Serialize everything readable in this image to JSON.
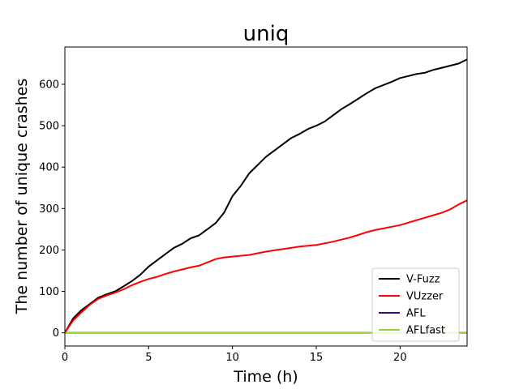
{
  "chart_data": {
    "type": "line",
    "title": "uniq",
    "xlabel": "Time (h)",
    "ylabel": "The number of unique crashes",
    "xlim": [
      0,
      24
    ],
    "ylim": [
      -32,
      690
    ],
    "xticks": [
      0,
      5,
      10,
      15,
      20
    ],
    "yticks": [
      0,
      100,
      200,
      300,
      400,
      500,
      600
    ],
    "grid": false,
    "legend_position": "bottom-right",
    "series": [
      {
        "name": "V-Fuzz",
        "color": "#000000",
        "x": [
          0,
          0.5,
          1,
          1.5,
          2,
          2.5,
          3,
          3.5,
          4,
          4.5,
          5,
          5.5,
          6,
          6.5,
          7,
          7.5,
          8,
          8.5,
          9,
          9.5,
          10,
          10.5,
          11,
          11.5,
          12,
          12.5,
          13,
          13.5,
          14,
          14.5,
          15,
          15.5,
          16,
          16.5,
          17,
          17.5,
          18,
          18.5,
          19,
          19.5,
          20,
          20.5,
          21,
          21.5,
          22,
          22.5,
          23,
          23.5,
          24
        ],
        "y": [
          0,
          35,
          55,
          70,
          85,
          93,
          100,
          112,
          125,
          140,
          160,
          175,
          190,
          205,
          215,
          228,
          235,
          250,
          265,
          290,
          330,
          355,
          385,
          405,
          425,
          440,
          455,
          470,
          480,
          492,
          500,
          510,
          525,
          540,
          552,
          565,
          578,
          590,
          598,
          606,
          615,
          620,
          625,
          628,
          635,
          640,
          645,
          650,
          660
        ]
      },
      {
        "name": "VUzzer",
        "color": "#ff0000",
        "x": [
          0,
          0.5,
          1,
          1.5,
          2,
          2.5,
          3,
          3.5,
          4,
          4.5,
          5,
          5.5,
          6,
          6.5,
          7,
          7.5,
          8,
          8.5,
          9,
          9.5,
          10,
          10.5,
          11,
          11.5,
          12,
          12.5,
          13,
          13.5,
          14,
          14.5,
          15,
          15.5,
          16,
          16.5,
          17,
          17.5,
          18,
          18.5,
          19,
          19.5,
          20,
          20.5,
          21,
          21.5,
          22,
          22.5,
          23,
          23.5,
          24
        ],
        "y": [
          0,
          30,
          50,
          68,
          82,
          90,
          97,
          105,
          115,
          123,
          130,
          135,
          142,
          148,
          153,
          158,
          162,
          170,
          178,
          182,
          184,
          186,
          188,
          192,
          196,
          199,
          202,
          205,
          208,
          210,
          212,
          216,
          220,
          225,
          230,
          236,
          243,
          248,
          252,
          256,
          260,
          266,
          272,
          278,
          284,
          290,
          298,
          310,
          320
        ]
      },
      {
        "name": "AFL",
        "color": "#4b0082",
        "x": [
          0,
          24
        ],
        "y": [
          0,
          0
        ]
      },
      {
        "name": "AFLfast",
        "color": "#9acd32",
        "x": [
          0,
          24
        ],
        "y": [
          0,
          0
        ]
      }
    ]
  }
}
